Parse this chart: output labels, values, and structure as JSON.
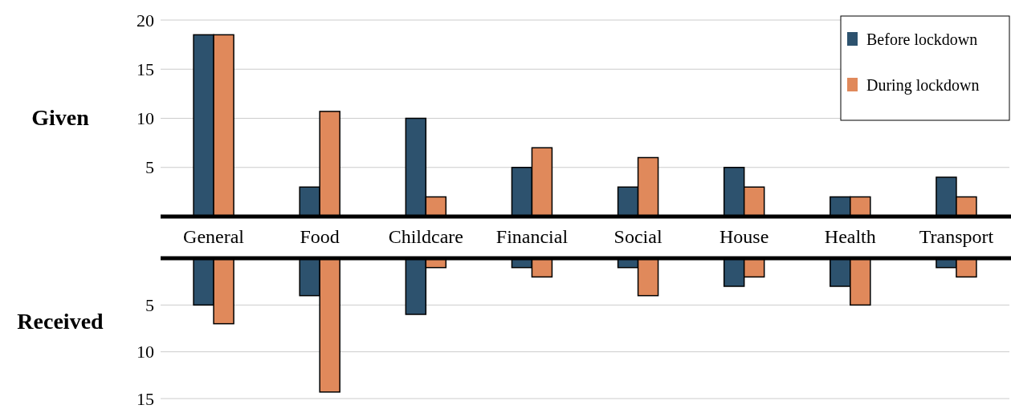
{
  "chart_data": [
    {
      "type": "bar",
      "ylabel": "Given",
      "categories": [
        "General",
        "Food",
        "Childcare",
        "Financial",
        "Social",
        "House",
        "Health",
        "Transport"
      ],
      "series": [
        {
          "name": "Before lockdown",
          "color": "#2d526e",
          "values": [
            18.5,
            3,
            10,
            5,
            3,
            5,
            2,
            4
          ]
        },
        {
          "name": "During lockdown",
          "color": "#e0895b",
          "values": [
            18.5,
            10.7,
            2,
            7,
            6,
            3,
            2,
            2
          ]
        }
      ],
      "ylim": [
        0,
        20
      ],
      "yticks": [
        5,
        10,
        15,
        20
      ],
      "grid": "y",
      "legend": "top right"
    },
    {
      "type": "bar",
      "ylabel": "Received",
      "categories": [
        null,
        null,
        null,
        null,
        null,
        null,
        null,
        null
      ],
      "series": [
        {
          "color": "#2d526e",
          "values": [
            5,
            4,
            6,
            1,
            1,
            3,
            3,
            1
          ]
        },
        {
          "color": "#e0895b",
          "values": [
            7,
            14.3,
            1,
            2,
            4,
            2,
            5,
            2
          ]
        }
      ],
      "ylim": [
        15,
        0
      ],
      "yticks": [
        5,
        10,
        15
      ],
      "grid": "y",
      "tick_labels": "y"
    }
  ]
}
